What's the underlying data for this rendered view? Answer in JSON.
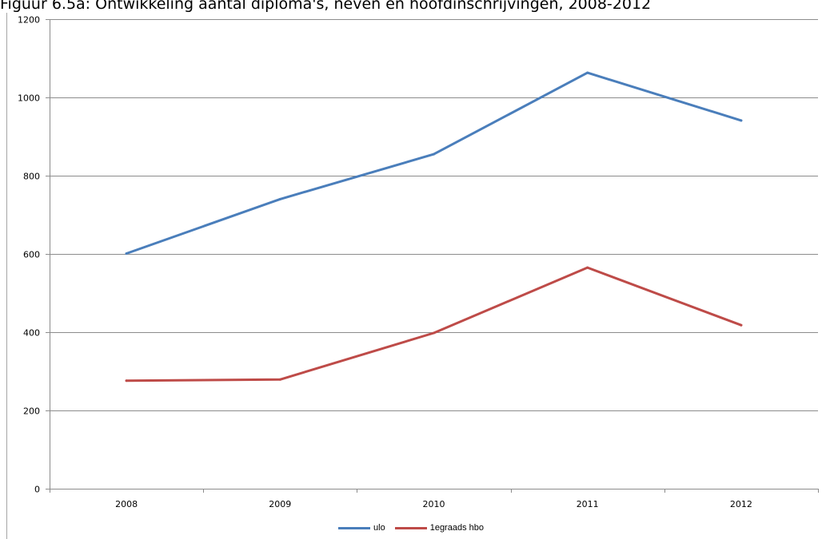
{
  "chart_data": {
    "type": "line",
    "title": "Figuur 6.5a: Ontwikkeling aantal diploma's, neven en hoofdinschrijvingen, 2008-2012",
    "xlabel": "",
    "ylabel": "",
    "categories": [
      "2008",
      "2009",
      "2010",
      "2011",
      "2012"
    ],
    "ylim": [
      0,
      1200
    ],
    "yticks": [
      0,
      200,
      400,
      600,
      800,
      1000,
      1200
    ],
    "grid": true,
    "legend_position": "bottom",
    "series": [
      {
        "name": "ulo",
        "color": "#4a7ebb",
        "values": [
          601,
          740,
          855,
          1063,
          941
        ]
      },
      {
        "name": "1egraads hbo",
        "color": "#be4b48",
        "values": [
          276,
          279,
          398,
          565,
          418
        ]
      }
    ]
  }
}
